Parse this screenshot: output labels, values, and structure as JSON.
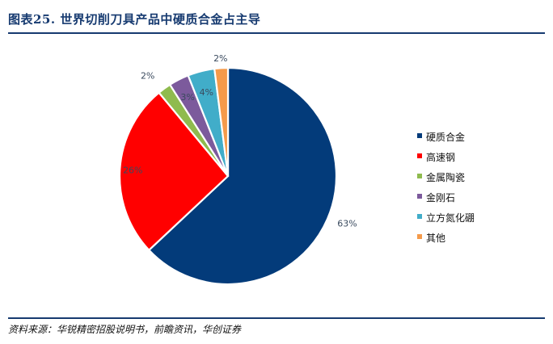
{
  "header": {
    "title": "图表25.  世界切削刀具产品中硬质合金占主导"
  },
  "footer": {
    "source": "资料来源：华锐精密招股说明书，前瞻资讯，华创证券"
  },
  "chart_data": {
    "type": "pie",
    "categories": [
      "硬质合金",
      "高速钢",
      "金属陶瓷",
      "金刚石",
      "立方氮化硼",
      "其他"
    ],
    "values": [
      63,
      26,
      2,
      3,
      4,
      2
    ],
    "labels": [
      "63%",
      "26%",
      "2%",
      "3%",
      "4%",
      "2%"
    ],
    "colors": [
      "#033b7a",
      "#ff0000",
      "#8fbb4e",
      "#7c5a9c",
      "#41adc9",
      "#f59a4a"
    ],
    "legend_position": "right",
    "start": "12 o'clock, clockwise"
  }
}
